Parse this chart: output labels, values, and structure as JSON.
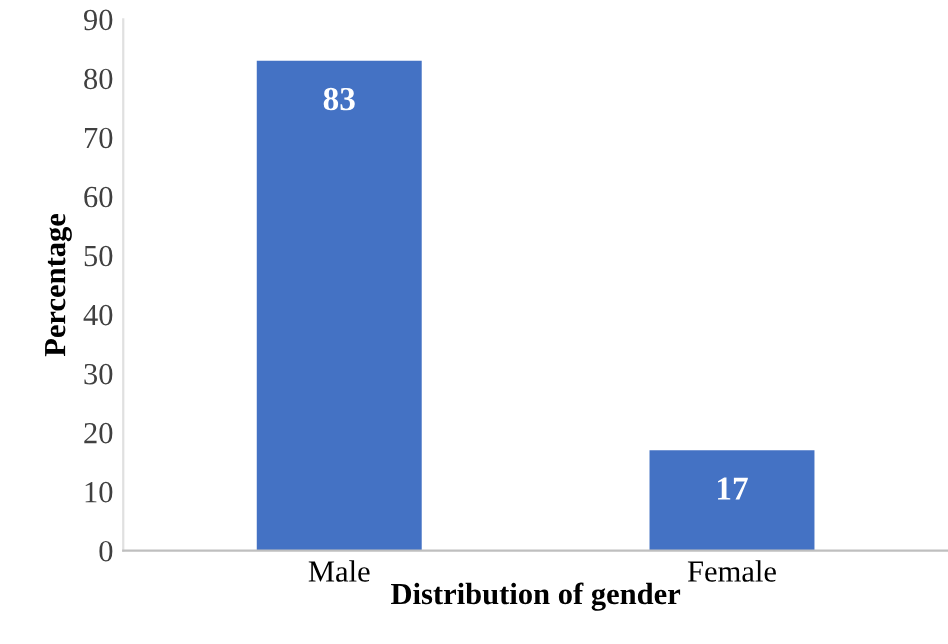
{
  "chart_data": {
    "type": "bar",
    "xlabel": "Distribution of gender",
    "ylabel": "Percentage",
    "categories": [
      "Male",
      "Female"
    ],
    "values": [
      83,
      17
    ],
    "color": "#4472c4",
    "ylim": [
      0,
      90
    ],
    "yticks": [
      0,
      10,
      20,
      30,
      40,
      50,
      60,
      70,
      80,
      90
    ],
    "data_labels": true,
    "grid": false
  }
}
